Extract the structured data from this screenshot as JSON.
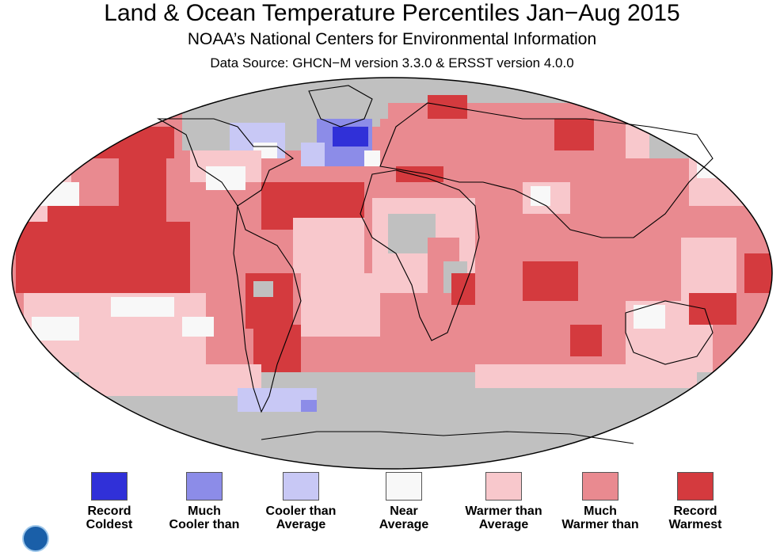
{
  "title": "Land & Ocean Temperature Percentiles Jan−Aug 2015",
  "subtitle": "NOAA’s National Centers for Environmental Information",
  "source": "Data Source: GHCN−M version 3.3.0 & ERSST version 4.0.0",
  "colors": {
    "record_coldest": "#3030d8",
    "much_cooler": "#8c8ce8",
    "cooler": "#c8c8f5",
    "near": "#f8f8f8",
    "warmer": "#f8c8cc",
    "much_warmer": "#e98a90",
    "record_warmest": "#d43a3e",
    "no_data": "#c0c0c0"
  },
  "legend": [
    {
      "line1": "Record",
      "line2": "Coldest",
      "color_key": "record_coldest"
    },
    {
      "line1": "Much",
      "line2": "Cooler than",
      "color_key": "much_cooler"
    },
    {
      "line1": "Cooler than",
      "line2": "Average",
      "color_key": "cooler"
    },
    {
      "line1": "Near",
      "line2": "Average",
      "color_key": "near"
    },
    {
      "line1": "Warmer than",
      "line2": "Average",
      "color_key": "warmer"
    },
    {
      "line1": "Much",
      "line2": "Warmer than",
      "color_key": "much_warmer"
    },
    {
      "line1": "Record",
      "line2": "Warmest",
      "color_key": "record_warmest"
    }
  ]
}
